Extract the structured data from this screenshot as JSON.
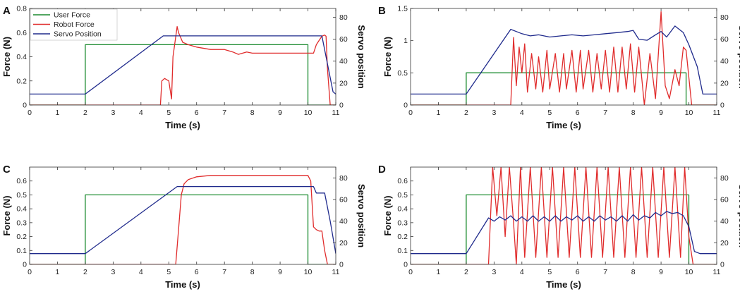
{
  "figure": {
    "panels": [
      {
        "letter": "A",
        "xlabel": "Time (s)",
        "ylabel_left": "Force (N)",
        "ylabel_right": "Servo position",
        "xlim": [
          0,
          11
        ],
        "ylim_left": [
          0,
          0.8
        ],
        "ylim_right": [
          0,
          88
        ],
        "xticks": [
          0,
          1,
          2,
          3,
          4,
          5,
          6,
          7,
          8,
          9,
          10,
          11
        ],
        "yticks_left": [
          0,
          0.2,
          0.4,
          0.6,
          0.8
        ],
        "yticks_left_labels": [
          "0",
          "0.2",
          "0.4",
          "0.6",
          "0.8"
        ],
        "yticks_right": [
          0,
          20,
          40,
          60,
          80
        ],
        "yticks_right_labels": [
          "0",
          "20",
          "40",
          "60",
          "80"
        ],
        "series": [
          {
            "name": "User Force",
            "color": "#1a8a2e",
            "axis": "left",
            "x": [
              0,
              2,
              2,
              10,
              10,
              11
            ],
            "y": [
              0,
              0,
              0.5,
              0.5,
              0,
              0
            ]
          },
          {
            "name": "Robot Force",
            "color": "#e02c2c",
            "axis": "left",
            "x": [
              0,
              4.7,
              4.75,
              4.85,
              5.0,
              5.1,
              5.15,
              5.3,
              5.35,
              5.5,
              5.7,
              6.0,
              6.5,
              7.0,
              7.3,
              7.5,
              7.8,
              8.0,
              8.5,
              9.0,
              9.5,
              10.0,
              10.2,
              10.3,
              10.5,
              10.6,
              10.65,
              10.7,
              10.8,
              11
            ],
            "y": [
              0,
              0.0,
              0.2,
              0.22,
              0.2,
              0.05,
              0.4,
              0.65,
              0.6,
              0.52,
              0.5,
              0.48,
              0.46,
              0.46,
              0.44,
              0.42,
              0.44,
              0.43,
              0.43,
              0.43,
              0.43,
              0.43,
              0.43,
              0.5,
              0.57,
              0.58,
              0.57,
              0.3,
              0.0,
              0
            ]
          },
          {
            "name": "Servo Position",
            "color": "#1f2a8c",
            "axis": "right",
            "x": [
              0,
              2,
              4.8,
              10.5,
              10.9,
              11
            ],
            "y": [
              10,
              10,
              63,
              63,
              12,
              10
            ]
          }
        ],
        "legend": {
          "location": "top-left",
          "entries": [
            "User Force",
            "Robot Force",
            "Servo Position"
          ]
        }
      },
      {
        "letter": "B",
        "xlabel": "Time (s)",
        "ylabel_left": "Force (N)",
        "ylabel_right": "Servo position",
        "xlim": [
          0,
          11
        ],
        "ylim_left": [
          0,
          1.5
        ],
        "ylim_right": [
          0,
          88
        ],
        "xticks": [
          0,
          1,
          2,
          3,
          4,
          5,
          6,
          7,
          8,
          9,
          10,
          11
        ],
        "yticks_left": [
          0,
          0.5,
          1,
          1.5
        ],
        "yticks_left_labels": [
          "0",
          "0.5",
          "1",
          "1.5"
        ],
        "yticks_right": [
          0,
          20,
          40,
          60,
          80
        ],
        "yticks_right_labels": [
          "0",
          "20",
          "40",
          "60",
          "80"
        ],
        "series": [
          {
            "name": "User Force",
            "color": "#1a8a2e",
            "axis": "left",
            "x": [
              0,
              2,
              2,
              9.9,
              9.9,
              11
            ],
            "y": [
              0,
              0,
              0.5,
              0.5,
              0,
              0
            ]
          },
          {
            "name": "Robot Force",
            "color": "#e02c2c",
            "axis": "left",
            "x": [
              0,
              3.6,
              3.7,
              3.8,
              3.9,
              4.0,
              4.1,
              4.2,
              4.35,
              4.5,
              4.6,
              4.75,
              4.9,
              5.0,
              5.2,
              5.35,
              5.5,
              5.6,
              5.8,
              5.95,
              6.1,
              6.2,
              6.4,
              6.55,
              6.7,
              6.85,
              7.0,
              7.15,
              7.3,
              7.45,
              7.6,
              7.75,
              7.9,
              8.05,
              8.2,
              8.4,
              8.6,
              8.8,
              9.0,
              9.15,
              9.3,
              9.5,
              9.65,
              9.8,
              9.9,
              10.1,
              11
            ],
            "y": [
              0,
              0,
              1.05,
              0.3,
              0.9,
              0.5,
              0.95,
              0.2,
              0.8,
              0.25,
              0.75,
              0.2,
              0.85,
              0.25,
              0.8,
              0.2,
              0.8,
              0.25,
              0.85,
              0.2,
              0.85,
              0.25,
              0.85,
              0.2,
              0.8,
              0.25,
              0.85,
              0.2,
              0.9,
              0.2,
              0.9,
              0.25,
              0.95,
              0.2,
              0.9,
              0.0,
              0.8,
              0.1,
              1.45,
              0.3,
              0.1,
              0.55,
              0.3,
              0.9,
              0.85,
              0.0,
              0
            ]
          },
          {
            "name": "Servo Position",
            "color": "#1f2a8c",
            "axis": "right",
            "x": [
              0,
              2,
              3.6,
              3.8,
              4.0,
              4.3,
              4.6,
              5.0,
              5.4,
              5.8,
              6.2,
              6.6,
              7.0,
              7.4,
              7.8,
              8.0,
              8.2,
              8.5,
              8.8,
              9.0,
              9.2,
              9.5,
              9.8,
              10.0,
              10.3,
              10.5,
              11
            ],
            "y": [
              10,
              10,
              69,
              67,
              65,
              63,
              64,
              62,
              63,
              64,
              63,
              64,
              65,
              66,
              67,
              68,
              60,
              59,
              64,
              67,
              62,
              72,
              66,
              55,
              35,
              10,
              10
            ]
          }
        ]
      },
      {
        "letter": "C",
        "xlabel": "Time (s)",
        "ylabel_left": "Force (N)",
        "ylabel_right": "Servo position",
        "xlim": [
          0,
          11
        ],
        "ylim_left": [
          0,
          0.7
        ],
        "ylim_right": [
          0,
          90
        ],
        "xticks": [
          0,
          1,
          2,
          3,
          4,
          5,
          6,
          7,
          8,
          9,
          10,
          11
        ],
        "yticks_left": [
          0,
          0.1,
          0.2,
          0.3,
          0.4,
          0.5,
          0.6
        ],
        "yticks_left_labels": [
          "0",
          "0.1",
          "0.2",
          "0.3",
          "0.4",
          "0.5",
          "0.6"
        ],
        "yticks_right": [
          0,
          20,
          40,
          60,
          80
        ],
        "yticks_right_labels": [
          "0",
          "20",
          "40",
          "60",
          "80"
        ],
        "series": [
          {
            "name": "User Force",
            "color": "#1a8a2e",
            "axis": "left",
            "x": [
              0,
              2,
              2,
              10,
              10,
              11
            ],
            "y": [
              0,
              0,
              0.5,
              0.5,
              0,
              0
            ]
          },
          {
            "name": "Robot Force",
            "color": "#e02c2c",
            "axis": "left",
            "x": [
              0,
              5.25,
              5.35,
              5.45,
              5.55,
              5.7,
              6.0,
              6.5,
              7.0,
              7.5,
              8.0,
              8.5,
              9.0,
              9.5,
              10.0,
              10.1,
              10.2,
              10.3,
              10.4,
              10.5,
              10.6,
              10.7,
              11
            ],
            "y": [
              0,
              0,
              0.25,
              0.5,
              0.58,
              0.61,
              0.63,
              0.64,
              0.64,
              0.64,
              0.64,
              0.64,
              0.64,
              0.64,
              0.64,
              0.6,
              0.27,
              0.25,
              0.24,
              0.24,
              0.1,
              0.0,
              0
            ]
          },
          {
            "name": "Servo Position",
            "color": "#1f2a8c",
            "axis": "right",
            "x": [
              0,
              2,
              5.3,
              10.2,
              10.3,
              10.6,
              10.8,
              11
            ],
            "y": [
              10,
              10,
              72,
              72,
              66,
              66,
              40,
              10
            ]
          }
        ]
      },
      {
        "letter": "D",
        "xlabel": "Time (s)",
        "ylabel_left": "Force (N)",
        "ylabel_right": "Servo position",
        "xlim": [
          0,
          11
        ],
        "ylim_left": [
          0,
          0.7
        ],
        "ylim_right": [
          0,
          90
        ],
        "xticks": [
          0,
          1,
          2,
          3,
          4,
          5,
          6,
          7,
          8,
          9,
          10,
          11
        ],
        "yticks_left": [
          0,
          0.1,
          0.2,
          0.3,
          0.4,
          0.5,
          0.6
        ],
        "yticks_left_labels": [
          "0",
          "0.1",
          "0.2",
          "0.3",
          "0.4",
          "0.5",
          "0.6"
        ],
        "yticks_right": [
          0,
          20,
          40,
          60,
          80
        ],
        "yticks_right_labels": [
          "0",
          "20",
          "40",
          "60",
          "80"
        ],
        "series": [
          {
            "name": "User Force",
            "color": "#1a8a2e",
            "axis": "left",
            "x": [
              0,
              2,
              2,
              10,
              10,
              11
            ],
            "y": [
              0,
              0,
              0.5,
              0.5,
              0,
              0
            ]
          },
          {
            "name": "Robot Force",
            "color": "#e02c2c",
            "axis": "left",
            "x": [
              0,
              2.8,
              2.95,
              3.1,
              3.25,
              3.4,
              3.55,
              3.7,
              3.8,
              3.95,
              4.1,
              4.3,
              4.5,
              4.7,
              4.9,
              5.1,
              5.3,
              5.5,
              5.7,
              5.9,
              6.1,
              6.3,
              6.5,
              6.7,
              6.9,
              7.1,
              7.3,
              7.5,
              7.7,
              7.9,
              8.1,
              8.3,
              8.5,
              8.7,
              8.9,
              9.1,
              9.3,
              9.5,
              9.7,
              9.85,
              10.0,
              10.15,
              11
            ],
            "y": [
              0,
              0,
              0.7,
              0.35,
              0.7,
              0.2,
              0.7,
              0.3,
              0.0,
              0.7,
              0.05,
              0.7,
              0.05,
              0.7,
              0.05,
              0.7,
              0.05,
              0.7,
              0.05,
              0.7,
              0.05,
              0.7,
              0.05,
              0.7,
              0.05,
              0.7,
              0.05,
              0.7,
              0.05,
              0.7,
              0.05,
              0.7,
              0.05,
              0.7,
              0.05,
              0.7,
              0.05,
              0.7,
              0.05,
              0.7,
              0.2,
              0.0,
              0
            ]
          },
          {
            "name": "Servo Position",
            "color": "#1f2a8c",
            "axis": "right",
            "x": [
              0,
              2,
              2.8,
              3.0,
              3.2,
              3.4,
              3.6,
              3.8,
              4.0,
              4.2,
              4.4,
              4.6,
              4.8,
              5.0,
              5.2,
              5.4,
              5.6,
              5.8,
              6.0,
              6.2,
              6.4,
              6.6,
              6.8,
              7.0,
              7.2,
              7.4,
              7.6,
              7.8,
              8.0,
              8.2,
              8.4,
              8.6,
              8.8,
              9.0,
              9.2,
              9.4,
              9.6,
              9.8,
              10.0,
              10.2,
              10.4,
              11
            ],
            "y": [
              10,
              10,
              43,
              40,
              44,
              41,
              45,
              40,
              44,
              40,
              45,
              40,
              44,
              40,
              45,
              40,
              44,
              41,
              45,
              40,
              44,
              40,
              45,
              41,
              44,
              40,
              45,
              40,
              46,
              41,
              45,
              43,
              48,
              45,
              49,
              47,
              48,
              45,
              35,
              12,
              10,
              10
            ]
          }
        ]
      }
    ]
  },
  "chart_data": [
    {
      "type": "line",
      "panel": "A",
      "title": "",
      "xlabel": "Time (s)",
      "ylabel": "Force (N)",
      "ylabel_right": "Servo position",
      "xlim": [
        0,
        11
      ],
      "ylim": [
        0,
        0.8
      ],
      "ylim_right": [
        0,
        88
      ],
      "series": [
        {
          "name": "User Force"
        },
        {
          "name": "Robot Force"
        },
        {
          "name": "Servo Position",
          "axis": "right"
        }
      ]
    },
    {
      "type": "line",
      "panel": "B",
      "title": "",
      "xlabel": "Time (s)",
      "ylabel": "Force (N)",
      "ylabel_right": "Servo position",
      "xlim": [
        0,
        11
      ],
      "ylim": [
        0,
        1.5
      ],
      "ylim_right": [
        0,
        88
      ],
      "series": [
        {
          "name": "User Force"
        },
        {
          "name": "Robot Force"
        },
        {
          "name": "Servo Position",
          "axis": "right"
        }
      ]
    },
    {
      "type": "line",
      "panel": "C",
      "title": "",
      "xlabel": "Time (s)",
      "ylabel": "Force (N)",
      "ylabel_right": "Servo position",
      "xlim": [
        0,
        11
      ],
      "ylim": [
        0,
        0.7
      ],
      "ylim_right": [
        0,
        90
      ],
      "series": [
        {
          "name": "User Force"
        },
        {
          "name": "Robot Force"
        },
        {
          "name": "Servo Position",
          "axis": "right"
        }
      ]
    },
    {
      "type": "line",
      "panel": "D",
      "title": "",
      "xlabel": "Time (s)",
      "ylabel": "Force (N)",
      "ylabel_right": "Servo position",
      "xlim": [
        0,
        11
      ],
      "ylim": [
        0,
        0.7
      ],
      "ylim_right": [
        0,
        90
      ],
      "series": [
        {
          "name": "User Force"
        },
        {
          "name": "Robot Force"
        },
        {
          "name": "Servo Position",
          "axis": "right"
        }
      ]
    }
  ]
}
